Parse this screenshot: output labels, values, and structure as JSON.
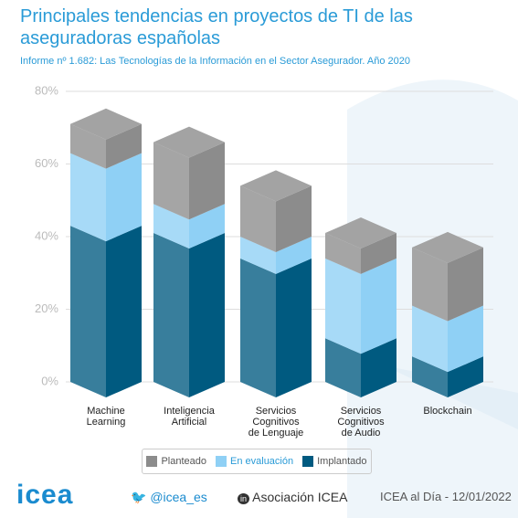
{
  "chart_data": {
    "type": "bar3d_stacked",
    "title": "Principales tendencias en proyectos de TI de las aseguradoras españolas",
    "subtitle": "Informe nº 1.682: Las Tecnologías de la Información en el Sector Asegurador. Año 2020",
    "categories": [
      "Machine\nLearning",
      "Inteligencia\nArtificial",
      "Servicios\nCognitivos\nde Lenguaje",
      "Servicios\nCognitivos\nde Audio",
      "Blockchain"
    ],
    "series": [
      {
        "name": "Implantado",
        "color": "#005a80",
        "values": [
          43,
          41,
          34,
          12,
          7
        ]
      },
      {
        "name": "En evaluación",
        "color": "#8fd0f5",
        "values": [
          20,
          8,
          6,
          22,
          14
        ]
      },
      {
        "name": "Planteado",
        "color": "#8c8c8c",
        "values": [
          8,
          17,
          14,
          7,
          16
        ]
      }
    ],
    "legend_order": [
      2,
      1,
      0
    ],
    "ylim": [
      0,
      80
    ],
    "yticks": [
      {
        "value": 0,
        "label": "0%"
      },
      {
        "value": 20,
        "label": "20%"
      },
      {
        "value": 40,
        "label": "40%"
      },
      {
        "value": 60,
        "label": "60%"
      },
      {
        "value": 80,
        "label": "80%"
      }
    ],
    "grid": true
  },
  "footer": {
    "logo": "icea",
    "twitter": "@icea_es",
    "linkedin": "Asociación ICEA",
    "source": "ICEA al Día - 12/01/2022"
  }
}
